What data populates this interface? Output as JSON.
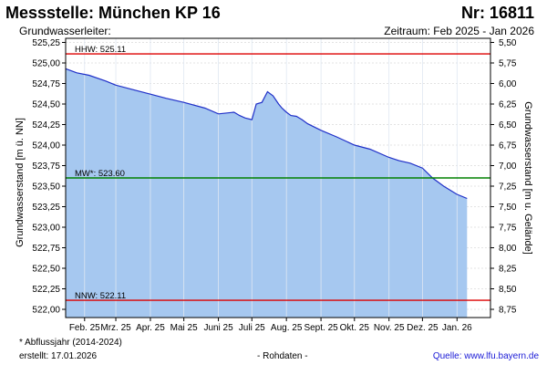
{
  "header": {
    "title": "Messstelle: München KP 16",
    "number": "Nr: 16811",
    "subtitle": "Grundwasserleiter:",
    "period": "Zeitraum: Feb 2025 - Jan 2026"
  },
  "footer": {
    "footnote": "* Abflussjahr (2014-2024)",
    "created": "erstellt:  17.01.2026",
    "raw": "- Rohdaten -",
    "source": "Quelle: www.lfu.bayern.de"
  },
  "colors": {
    "fill": "#a6c8f0",
    "line": "#1f2fc8",
    "hhw": "#dd0000",
    "nnw": "#dd0000",
    "mw": "#008000",
    "grid": "#c8c8c8"
  },
  "chart_data": {
    "type": "area",
    "ylabel": "Grundwasserstand [m ü. NN]",
    "ylabel_right": "Grundwasserstand [m u. Gelände]",
    "ylim": [
      521.9,
      525.3
    ],
    "y_ticks": [
      522.0,
      522.25,
      522.5,
      522.75,
      523.0,
      523.25,
      523.5,
      523.75,
      524.0,
      524.25,
      524.5,
      524.75,
      525.0,
      525.25
    ],
    "y_tick_labels": [
      "522,00",
      "522,25",
      "522,50",
      "522,75",
      "523,00",
      "523,25",
      "523,50",
      "523,75",
      "524,00",
      "524,25",
      "524,50",
      "524,75",
      "525,00",
      "525,25"
    ],
    "y_right_ticks": [
      5.5,
      5.75,
      6.0,
      6.25,
      6.5,
      6.75,
      7.0,
      7.25,
      7.5,
      7.75,
      8.0,
      8.25,
      8.5,
      8.75
    ],
    "y_right_tick_labels": [
      "5,50",
      "5,75",
      "6,00",
      "6,25",
      "6,50",
      "6,75",
      "7,00",
      "7,25",
      "7,50",
      "7,75",
      "8,00",
      "8,25",
      "8,50",
      "8,75"
    ],
    "right_axis_reference": 530.75,
    "x_labels": [
      "Feb. 25",
      "Mrz. 25",
      "Apr. 25",
      "Mai 25",
      "Juni 25",
      "Juli 25",
      "Aug. 25",
      "Sept. 25",
      "Okt. 25",
      "Nov. 25",
      "Dez. 25",
      "Jan. 26"
    ],
    "x_label_dates": [
      "2025-02-01",
      "2025-03-01",
      "2025-04-01",
      "2025-05-01",
      "2025-06-01",
      "2025-07-01",
      "2025-08-01",
      "2025-09-01",
      "2025-10-01",
      "2025-11-01",
      "2025-12-01",
      "2026-01-01"
    ],
    "xlim": [
      "2025-01-15",
      "2026-01-31"
    ],
    "series": [
      {
        "x": [
          "2025-01-15",
          "2025-01-25",
          "2025-02-05",
          "2025-02-20",
          "2025-03-01",
          "2025-03-15",
          "2025-04-01",
          "2025-04-15",
          "2025-05-01",
          "2025-05-20",
          "2025-06-01",
          "2025-06-15",
          "2025-06-20",
          "2025-06-25",
          "2025-07-01",
          "2025-07-05",
          "2025-07-10",
          "2025-07-15",
          "2025-07-20",
          "2025-07-25",
          "2025-07-28",
          "2025-08-01",
          "2025-08-05",
          "2025-08-10",
          "2025-08-15",
          "2025-08-20",
          "2025-09-01",
          "2025-09-15",
          "2025-10-01",
          "2025-10-15",
          "2025-11-01",
          "2025-11-10",
          "2025-11-20",
          "2025-12-01",
          "2025-12-10",
          "2025-12-20",
          "2026-01-01",
          "2026-01-10"
        ],
        "y": [
          524.93,
          524.88,
          524.85,
          524.78,
          524.73,
          524.68,
          524.62,
          524.57,
          524.52,
          524.45,
          524.38,
          524.4,
          524.36,
          524.33,
          524.31,
          524.5,
          524.52,
          524.65,
          524.6,
          524.5,
          524.45,
          524.4,
          524.36,
          524.35,
          524.31,
          524.26,
          524.18,
          524.1,
          524.0,
          523.95,
          523.85,
          523.81,
          523.78,
          523.72,
          523.6,
          523.5,
          523.4,
          523.35
        ]
      }
    ],
    "reference_lines": [
      {
        "label": "HHW: 525.11",
        "value": 525.11,
        "color": "#dd0000"
      },
      {
        "label": "MW*: 523.60",
        "value": 523.6,
        "color": "#008000"
      },
      {
        "label": "NNW: 522.11",
        "value": 522.11,
        "color": "#dd0000"
      }
    ]
  }
}
